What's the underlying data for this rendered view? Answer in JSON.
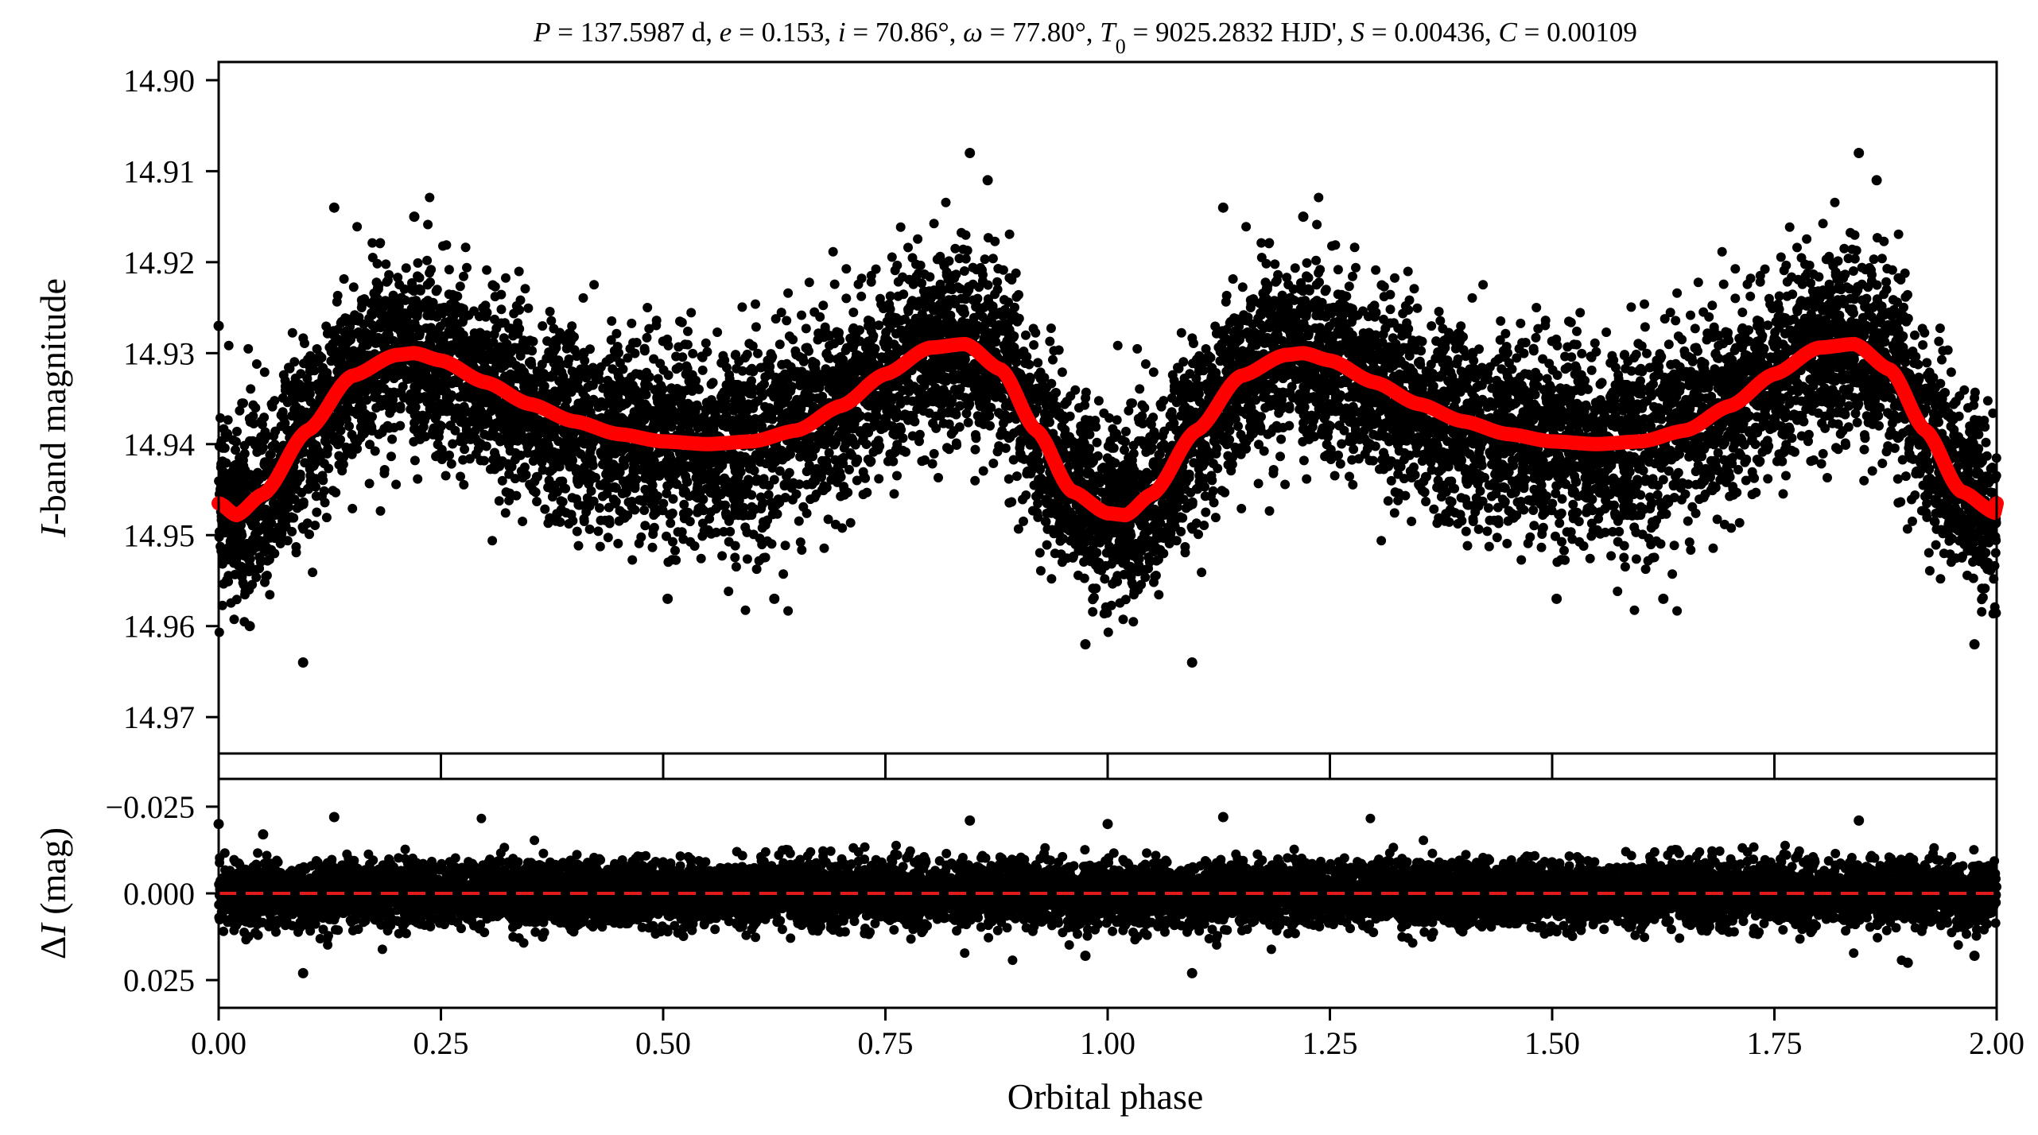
{
  "figure": {
    "title_parts": [
      {
        "t": "P",
        "i": true
      },
      {
        "t": " = 137.5987 d, "
      },
      {
        "t": "e",
        "i": true
      },
      {
        "t": " = 0.153, "
      },
      {
        "t": "i",
        "i": true
      },
      {
        "t": " = 70.86°, "
      },
      {
        "t": "ω",
        "i": true
      },
      {
        "t": " = 77.80°, "
      },
      {
        "t": "T",
        "i": true
      },
      {
        "t": "0",
        "sub": true
      },
      {
        "t": " = 9025.2832 HJD', "
      },
      {
        "t": "S",
        "i": true
      },
      {
        "t": " = 0.00436, "
      },
      {
        "t": "C",
        "i": true
      },
      {
        "t": " = 0.00109"
      }
    ],
    "top_ylabel_parts": [
      {
        "t": "I",
        "i": true
      },
      {
        "t": "-band magnitude"
      }
    ],
    "bottom_ylabel_parts": [
      {
        "t": "Δ"
      },
      {
        "t": "I",
        "i": true
      },
      {
        "t": " (mag)"
      }
    ],
    "xlabel": "Orbital phase",
    "colors": {
      "data_points": "#000000",
      "model_curve": "#ff0000",
      "zero_line": "#e31a1c",
      "axes": "#000000"
    }
  },
  "chart_data": [
    {
      "type": "scatter",
      "panel": "light-curve",
      "xlabel": "",
      "ylabel": "I-band magnitude",
      "xlim": [
        0,
        2
      ],
      "ylim": [
        14.974,
        14.898
      ],
      "y_inverted": true,
      "x_ticks": [
        0,
        0.25,
        0.5,
        0.75,
        1.0,
        1.25,
        1.5,
        1.75,
        2.0
      ],
      "y_ticks": [
        14.9,
        14.91,
        14.92,
        14.93,
        14.94,
        14.95,
        14.96,
        14.97
      ],
      "y_tick_labels": [
        "14.90",
        "14.91",
        "14.92",
        "14.93",
        "14.94",
        "14.95",
        "14.96",
        "14.97"
      ],
      "grid": false,
      "legend": "none",
      "observations": {
        "description_of_distribution": "dense cloud of several thousand I-band points scattering about the model with sigma ~0.005 mag",
        "outliers": [
          {
            "x": 0.095,
            "y": 14.964
          },
          {
            "x": 0.13,
            "y": 14.914
          },
          {
            "x": 0.22,
            "y": 14.915
          },
          {
            "x": 0.845,
            "y": 14.908
          },
          {
            "x": 0.865,
            "y": 14.911
          },
          {
            "x": 0.975,
            "y": 14.962
          },
          {
            "x": 1.095,
            "y": 14.964
          },
          {
            "x": 1.13,
            "y": 14.914
          },
          {
            "x": 1.22,
            "y": 14.915
          },
          {
            "x": 1.845,
            "y": 14.908
          },
          {
            "x": 1.865,
            "y": 14.911
          },
          {
            "x": 1.975,
            "y": 14.962
          },
          {
            "x": 0.0,
            "y": 14.927
          },
          {
            "x": 0.035,
            "y": 14.96
          },
          {
            "x": 0.625,
            "y": 14.957
          },
          {
            "x": 1.625,
            "y": 14.957
          },
          {
            "x": 0.505,
            "y": 14.957
          },
          {
            "x": 1.505,
            "y": 14.957
          }
        ]
      },
      "model_curve": {
        "name": "",
        "x": [
          0.0,
          0.02,
          0.05,
          0.1,
          0.15,
          0.2,
          0.22,
          0.25,
          0.3,
          0.35,
          0.4,
          0.45,
          0.5,
          0.55,
          0.6,
          0.65,
          0.7,
          0.75,
          0.8,
          0.84,
          0.88,
          0.92,
          0.96,
          1.0,
          1.02,
          1.05,
          1.1,
          1.15,
          1.2,
          1.22,
          1.25,
          1.3,
          1.35,
          1.4,
          1.45,
          1.5,
          1.55,
          1.6,
          1.65,
          1.7,
          1.75,
          1.8,
          1.84,
          1.88,
          1.92,
          1.96,
          2.0
        ],
        "y": [
          14.9465,
          14.9478,
          14.9455,
          14.9385,
          14.9325,
          14.9302,
          14.93,
          14.9308,
          14.9332,
          14.9356,
          14.9375,
          14.9389,
          14.9397,
          14.94,
          14.9397,
          14.9385,
          14.9358,
          14.9323,
          14.9294,
          14.929,
          14.9318,
          14.9385,
          14.9452,
          14.9476,
          14.9478,
          14.9455,
          14.9385,
          14.9325,
          14.9302,
          14.93,
          14.9308,
          14.9332,
          14.9356,
          14.9375,
          14.9389,
          14.9397,
          14.94,
          14.9397,
          14.9385,
          14.9358,
          14.9323,
          14.9294,
          14.929,
          14.9318,
          14.9385,
          14.9452,
          14.9476
        ]
      }
    },
    {
      "type": "scatter",
      "panel": "residuals",
      "xlabel": "Orbital phase",
      "ylabel": "ΔI (mag)",
      "xlim": [
        0,
        2
      ],
      "ylim": [
        0.033,
        -0.033
      ],
      "y_inverted": true,
      "x_ticks": [
        0,
        0.25,
        0.5,
        0.75,
        1.0,
        1.25,
        1.5,
        1.75,
        2.0
      ],
      "x_tick_labels": [
        "0.00",
        "0.25",
        "0.50",
        "0.75",
        "1.00",
        "1.25",
        "1.50",
        "1.75",
        "2.00"
      ],
      "y_ticks": [
        -0.025,
        0.0,
        0.025
      ],
      "y_tick_labels": [
        "−0.025",
        "0.000",
        "0.025"
      ],
      "grid": false,
      "legend": "none",
      "zero_line": {
        "y": 0.0,
        "style": "dashed"
      },
      "observations": {
        "description_of_distribution": "residuals scattered about zero with sigma ~0.005 mag",
        "outliers": [
          {
            "x": 0.0,
            "y": -0.02
          },
          {
            "x": 0.05,
            "y": -0.017
          },
          {
            "x": 0.095,
            "y": 0.023
          },
          {
            "x": 0.13,
            "y": -0.022
          },
          {
            "x": 0.845,
            "y": -0.021
          },
          {
            "x": 0.975,
            "y": 0.018
          },
          {
            "x": 1.095,
            "y": 0.023
          },
          {
            "x": 1.13,
            "y": -0.022
          },
          {
            "x": 1.845,
            "y": -0.021
          },
          {
            "x": 1.975,
            "y": 0.018
          },
          {
            "x": 1.0,
            "y": -0.02
          },
          {
            "x": 1.9,
            "y": 0.02
          }
        ]
      }
    }
  ]
}
